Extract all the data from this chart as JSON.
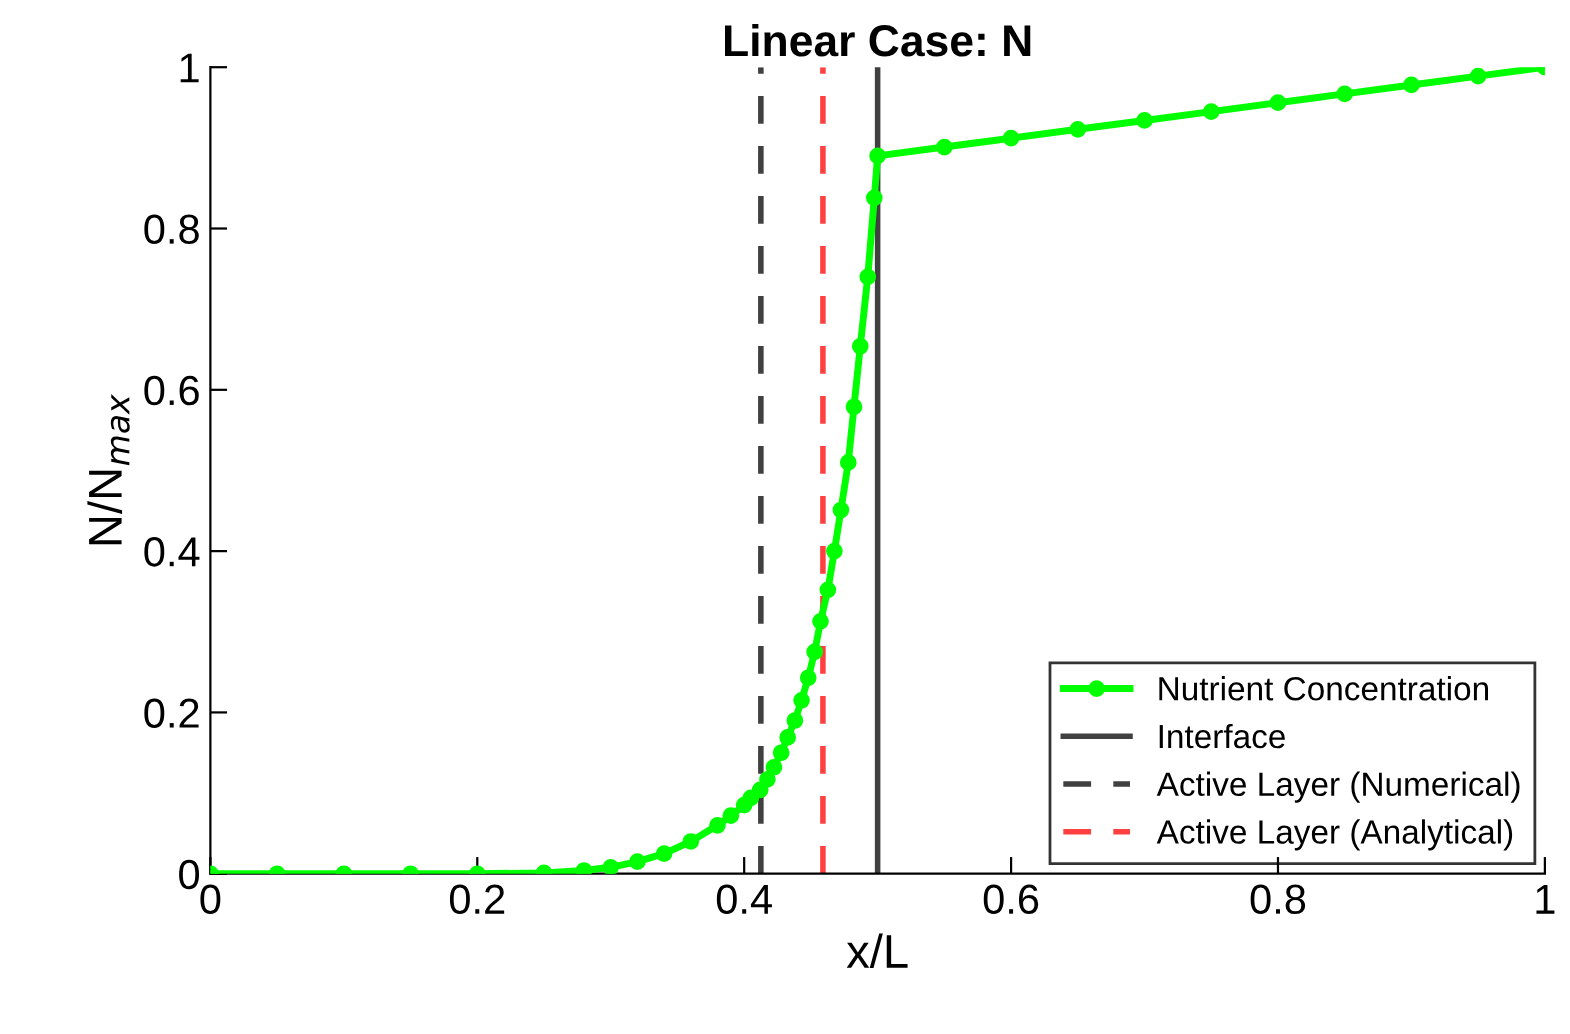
{
  "chart_data": {
    "type": "line",
    "title": "Linear Case: N",
    "xlabel": "x/L",
    "ylabel": "N/N$_{max}$",
    "series": [
      {
        "name": "Nutrient Concentration",
        "color": "#00ff00",
        "marker": "circle",
        "x": [
          0,
          0.05,
          0.1,
          0.15,
          0.2,
          0.25,
          0.28,
          0.3,
          0.32,
          0.34,
          0.36,
          0.38,
          0.39,
          0.4,
          0.405,
          0.412,
          0.4174,
          0.4223,
          0.4277,
          0.4326,
          0.438,
          0.443,
          0.448,
          0.4528,
          0.4572,
          0.4627,
          0.4676,
          0.4725,
          0.478,
          0.4823,
          0.487,
          0.4926,
          0.4975,
          0.5,
          0.55,
          0.6,
          0.65,
          0.7,
          0.75,
          0.8,
          0.85,
          0.9,
          0.95,
          1
        ],
        "values": [
          0,
          0,
          0,
          0,
          0,
          0.001,
          0.004,
          0.008,
          0.015,
          0.025,
          0.04,
          0.06,
          0.072,
          0.085,
          0.094,
          0.104,
          0.117,
          0.132,
          0.15,
          0.169,
          0.19,
          0.215,
          0.243,
          0.275,
          0.313,
          0.352,
          0.4,
          0.451,
          0.51,
          0.579,
          0.654,
          0.74,
          0.838,
          0.89,
          0.901,
          0.912,
          0.923,
          0.934,
          0.945,
          0.956,
          0.967,
          0.978,
          0.989,
          1
        ]
      },
      {
        "name": "Interface",
        "color": "#404040",
        "line_style": "solid",
        "x": [
          0.5,
          0.5
        ],
        "values": [
          0,
          1
        ]
      },
      {
        "name": "Active Layer (Numerical)",
        "color": "#404040",
        "line_style": "dashed",
        "x": [
          0.4125,
          0.4125
        ],
        "values": [
          0,
          1
        ]
      },
      {
        "name": "Active Layer (Analytical)",
        "color": "#ff4040",
        "line_style": "dashed",
        "x": [
          0.459,
          0.459
        ],
        "values": [
          0,
          1
        ]
      }
    ],
    "xlim": [
      0,
      1
    ],
    "ylim": [
      0,
      1
    ],
    "xticks": [
      0,
      0.2,
      0.4,
      0.6,
      0.8,
      1
    ],
    "yticks": [
      0,
      0.2,
      0.4,
      0.6,
      0.8,
      1
    ],
    "legend": "bottom right",
    "grid": false
  }
}
